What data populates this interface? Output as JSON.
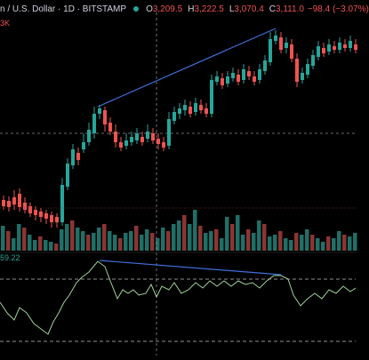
{
  "legend": {
    "symbol": "n / U.S. Dollar · 1D · BITSTAMP",
    "o_label": "O",
    "o_value": "3,209.5",
    "h_label": "H",
    "h_value": "3,222.5",
    "l_label": "L",
    "l_value": "3,070.4",
    "c_label": "C",
    "c_value": "3,111.0",
    "change": "−98.4 (−3.07%)"
  },
  "volume_badge": "3K",
  "rsi_badge": "59.22",
  "colors": {
    "background": "#000000",
    "up": "#26a69a",
    "down": "#ef5350",
    "up_volume": "#1f6f68",
    "down_volume": "#8c3434",
    "trendline": "#3f6fd9",
    "rsi_line": "#9fd39a",
    "crosshair": "#8a8a8a"
  }
}
